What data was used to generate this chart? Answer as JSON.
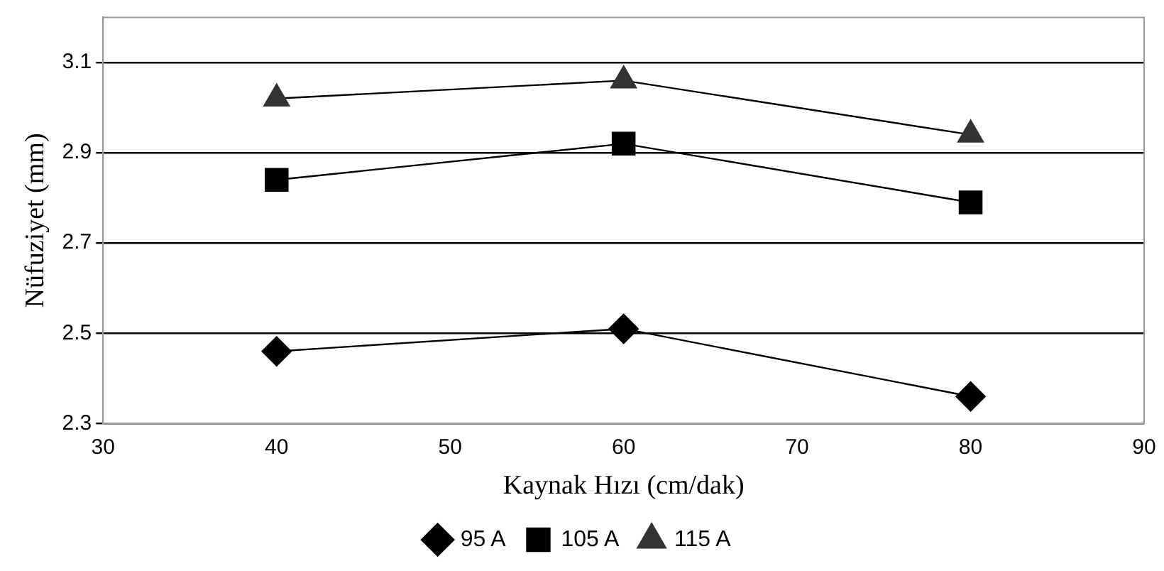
{
  "chart_data": {
    "type": "line",
    "xlabel": "Kaynak Hızı (cm/dak)",
    "ylabel": "Nüfuziyet (mm)",
    "x": [
      40,
      60,
      80
    ],
    "series": [
      {
        "name": "95 A",
        "color": "#000000",
        "marker": "diamond",
        "values": [
          2.46,
          2.51,
          2.36
        ]
      },
      {
        "name": "105 A",
        "color": "#000000",
        "marker": "square",
        "values": [
          2.84,
          2.92,
          2.79
        ]
      },
      {
        "name": "115 A",
        "color": "#333333",
        "marker": "triangle",
        "values": [
          3.02,
          3.06,
          2.94
        ]
      }
    ],
    "xlim": [
      30,
      90
    ],
    "xticks": [
      30,
      40,
      50,
      60,
      70,
      80,
      90
    ],
    "ylim": [
      2.3,
      3.2
    ],
    "yticks": [
      2.3,
      2.5,
      2.7,
      2.9,
      3.1
    ],
    "grid": "y",
    "legend": "bottom"
  }
}
